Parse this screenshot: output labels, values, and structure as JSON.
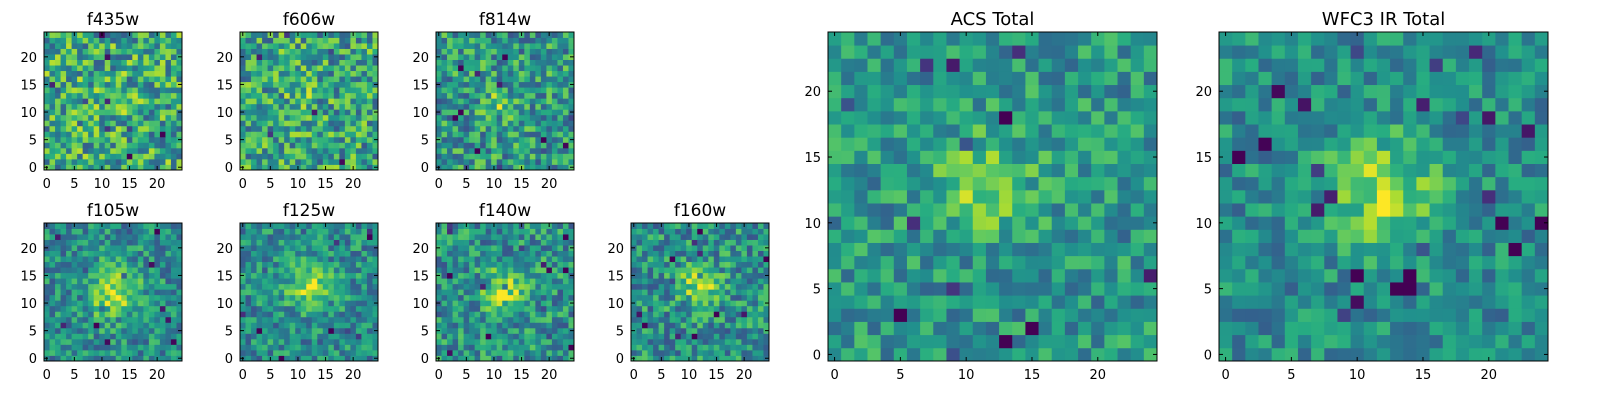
{
  "colormap": "viridis",
  "chart_data": [
    {
      "type": "heatmap",
      "title": "f435w",
      "grid_size": 25,
      "noise": 0.62,
      "peak": 0.08,
      "center": [
        12,
        12
      ],
      "sigma": 3.0,
      "xticks": [
        0,
        5,
        10,
        15,
        20
      ],
      "xtick_labels": [
        "0",
        "5",
        "10",
        "15",
        "20"
      ],
      "yticks": [
        0,
        5,
        10,
        15,
        20
      ],
      "ytick_labels": [
        "0",
        "5",
        "10",
        "15",
        "20"
      ],
      "xlim": [
        -0.5,
        24.5
      ],
      "ylim": [
        -0.5,
        24.5
      ]
    },
    {
      "type": "heatmap",
      "title": "f606w",
      "grid_size": 25,
      "noise": 0.6,
      "peak": 0.22,
      "center": [
        11,
        11
      ],
      "sigma": 2.6,
      "xticks": [
        0,
        5,
        10,
        15,
        20
      ],
      "xtick_labels": [
        "0",
        "5",
        "10",
        "15",
        "20"
      ],
      "yticks": [
        0,
        5,
        10,
        15,
        20
      ],
      "ytick_labels": [
        "0",
        "5",
        "10",
        "15",
        "20"
      ],
      "xlim": [
        -0.5,
        24.5
      ],
      "ylim": [
        -0.5,
        24.5
      ]
    },
    {
      "type": "heatmap",
      "title": "f814w",
      "grid_size": 25,
      "noise": 0.55,
      "peak": 0.45,
      "center": [
        11,
        11
      ],
      "sigma": 2.2,
      "xticks": [
        0,
        5,
        10,
        15,
        20
      ],
      "xtick_labels": [
        "0",
        "5",
        "10",
        "15",
        "20"
      ],
      "yticks": [
        0,
        5,
        10,
        15,
        20
      ],
      "ytick_labels": [
        "0",
        "5",
        "10",
        "15",
        "20"
      ],
      "xlim": [
        -0.5,
        24.5
      ],
      "ylim": [
        -0.5,
        24.5
      ]
    },
    {
      "type": "heatmap",
      "title": "f105w",
      "grid_size": 25,
      "noise": 0.45,
      "peak": 0.7,
      "center": [
        12,
        12
      ],
      "sigma": 3.2,
      "xticks": [
        0,
        5,
        10,
        15,
        20
      ],
      "xtick_labels": [
        "0",
        "5",
        "10",
        "15",
        "20"
      ],
      "yticks": [
        0,
        5,
        10,
        15,
        20
      ],
      "ytick_labels": [
        "0",
        "5",
        "10",
        "15",
        "20"
      ],
      "xlim": [
        -0.5,
        24.5
      ],
      "ylim": [
        -0.5,
        24.5
      ]
    },
    {
      "type": "heatmap",
      "title": "f125w",
      "grid_size": 25,
      "noise": 0.45,
      "peak": 0.7,
      "center": [
        12,
        13
      ],
      "sigma": 2.6,
      "xticks": [
        0,
        5,
        10,
        15,
        20
      ],
      "xtick_labels": [
        "0",
        "5",
        "10",
        "15",
        "20"
      ],
      "yticks": [
        0,
        5,
        10,
        15,
        20
      ],
      "ytick_labels": [
        "0",
        "5",
        "10",
        "15",
        "20"
      ],
      "xlim": [
        -0.5,
        24.5
      ],
      "ylim": [
        -0.5,
        24.5
      ]
    },
    {
      "type": "heatmap",
      "title": "f140w",
      "grid_size": 25,
      "noise": 0.5,
      "peak": 0.62,
      "center": [
        12,
        12
      ],
      "sigma": 2.8,
      "xticks": [
        0,
        5,
        10,
        15,
        20
      ],
      "xtick_labels": [
        "0",
        "5",
        "10",
        "15",
        "20"
      ],
      "yticks": [
        0,
        5,
        10,
        15,
        20
      ],
      "ytick_labels": [
        "0",
        "5",
        "10",
        "15",
        "20"
      ],
      "xlim": [
        -0.5,
        24.5
      ],
      "ylim": [
        -0.5,
        24.5
      ]
    },
    {
      "type": "heatmap",
      "title": "f160w",
      "grid_size": 25,
      "noise": 0.5,
      "peak": 0.62,
      "center": [
        12,
        13
      ],
      "sigma": 2.6,
      "xticks": [
        0,
        5,
        10,
        15,
        20
      ],
      "xtick_labels": [
        "0",
        "5",
        "10",
        "15",
        "20"
      ],
      "yticks": [
        0,
        5,
        10,
        15,
        20
      ],
      "ytick_labels": [
        "0",
        "5",
        "10",
        "15",
        "20"
      ],
      "xlim": [
        -0.5,
        24.5
      ],
      "ylim": [
        -0.5,
        24.5
      ]
    },
    {
      "type": "heatmap",
      "title": "ACS Total",
      "grid_size": 25,
      "noise": 0.42,
      "peak": 0.5,
      "center": [
        11.5,
        13
      ],
      "sigma": 2.6,
      "xticks": [
        0,
        5,
        10,
        15,
        20
      ],
      "xtick_labels": [
        "0",
        "5",
        "10",
        "15",
        "20"
      ],
      "yticks": [
        0,
        5,
        10,
        15,
        20
      ],
      "ytick_labels": [
        "0",
        "5",
        "10",
        "15",
        "20"
      ],
      "xlim": [
        -0.5,
        24.5
      ],
      "ylim": [
        -0.5,
        24.5
      ]
    },
    {
      "type": "heatmap",
      "title": "WFC3 IR Total",
      "grid_size": 25,
      "noise": 0.38,
      "peak": 0.7,
      "center": [
        12,
        12.5
      ],
      "sigma": 2.8,
      "xticks": [
        0,
        5,
        10,
        15,
        20
      ],
      "xtick_labels": [
        "0",
        "5",
        "10",
        "15",
        "20"
      ],
      "yticks": [
        0,
        5,
        10,
        15,
        20
      ],
      "ytick_labels": [
        "0",
        "5",
        "10",
        "15",
        "20"
      ],
      "xlim": [
        -0.5,
        24.5
      ],
      "ylim": [
        -0.5,
        24.5
      ]
    }
  ]
}
